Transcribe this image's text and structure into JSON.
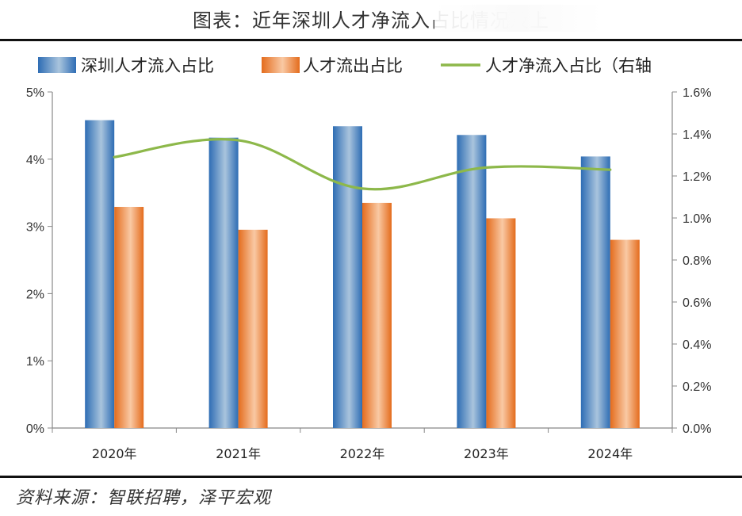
{
  "title": "图表：近年深圳人才净流入占比情况及上",
  "source": "资料来源：智联招聘，泽平宏观",
  "colors": {
    "inflow_dark": "#2E6DB4",
    "inflow_light": "#A9C4DD",
    "outflow_dark": "#E46C1D",
    "outflow_light": "#F9C9A4",
    "net_line": "#8DB84A",
    "axis": "#888888"
  },
  "chart_data": {
    "type": "bar",
    "categories": [
      "2020年",
      "2021年",
      "2022年",
      "2023年",
      "2024年"
    ],
    "series": [
      {
        "name": "深圳人才流入占比",
        "axis": "left",
        "type": "bar",
        "values": [
          4.58,
          4.32,
          4.49,
          4.36,
          4.04
        ]
      },
      {
        "name": "人才流出占比",
        "axis": "left",
        "type": "bar",
        "values": [
          3.29,
          2.95,
          3.35,
          3.12,
          2.8
        ]
      },
      {
        "name": "人才净流入占比（右轴",
        "axis": "right",
        "type": "line",
        "values": [
          1.29,
          1.37,
          1.14,
          1.24,
          1.23
        ]
      }
    ],
    "y_left": {
      "min": 0,
      "max": 5,
      "ticks": [
        0,
        1,
        2,
        3,
        4,
        5
      ],
      "tick_labels": [
        "0%",
        "1%",
        "2%",
        "3%",
        "4%",
        "5%"
      ]
    },
    "y_right": {
      "min": 0,
      "max": 1.6,
      "ticks": [
        0,
        0.2,
        0.4,
        0.6,
        0.8,
        1.0,
        1.2,
        1.4,
        1.6
      ],
      "tick_labels": [
        "0.0%",
        "0.2%",
        "0.4%",
        "0.6%",
        "0.8%",
        "1.0%",
        "1.2%",
        "1.4%",
        "1.6%"
      ]
    },
    "legend_position": "top",
    "grid": false
  }
}
